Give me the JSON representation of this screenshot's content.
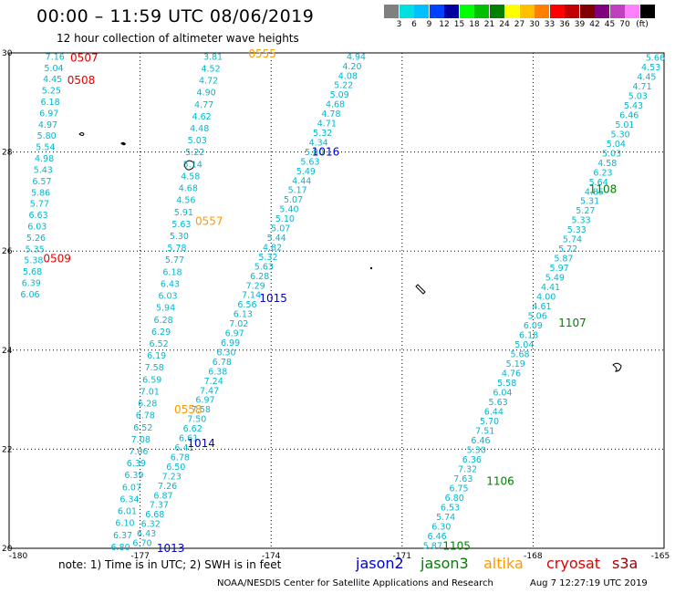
{
  "title": "00:00 – 11:59 UTC 08/06/2019",
  "subtitle": "12 hour collection of altimeter wave heights",
  "scale": {
    "unit": "(ft)",
    "colors": [
      "#808080",
      "#00e0e0",
      "#00c0ff",
      "#0040ff",
      "#0000a0",
      "#00ff00",
      "#00c000",
      "#008000",
      "#ffff00",
      "#ffc000",
      "#ff8000",
      "#ff0000",
      "#c00000",
      "#800000",
      "#800080",
      "#c040c0",
      "#ff80ff",
      "#000000"
    ],
    "labels": [
      "3",
      "6",
      "9",
      "12",
      "15",
      "18",
      "21",
      "24",
      "27",
      "30",
      "33",
      "36",
      "39",
      "42",
      "45",
      "70"
    ]
  },
  "axes": {
    "x_ticks": [
      "-180",
      "-177",
      "-174",
      "-171",
      "-168",
      "-165"
    ],
    "y_ticks": [
      "30",
      "28",
      "26",
      "24",
      "22",
      "20"
    ],
    "lon_range": [
      -180,
      -165
    ],
    "lat_range": [
      20,
      30
    ]
  },
  "satellite_colors": {
    "jason2": "#0000c8",
    "jason3": "#008000",
    "altika": "#ff9900",
    "cryosat": "#e00000",
    "s3a": "#a00000",
    "swh": "#00b8d0"
  },
  "passes": [
    {
      "time": "0507",
      "sat": "cryosat",
      "lon": -178.28,
      "lat": 29.9
    },
    {
      "time": "0508",
      "sat": "cryosat",
      "lon": -178.35,
      "lat": 29.45
    },
    {
      "time": "0509",
      "sat": "cryosat",
      "lon": -178.9,
      "lat": 25.85
    },
    {
      "time": "0555",
      "sat": "altika",
      "lon": -174.2,
      "lat": 29.98
    },
    {
      "time": "0557",
      "sat": "altika",
      "lon": -175.42,
      "lat": 26.6
    },
    {
      "time": "0558",
      "sat": "altika",
      "lon": -175.9,
      "lat": 22.8
    },
    {
      "time": "1016",
      "sat": "jason2",
      "lon": -172.75,
      "lat": 28.0
    },
    {
      "time": "1015",
      "sat": "jason2",
      "lon": -173.95,
      "lat": 25.05
    },
    {
      "time": "1014",
      "sat": "jason2",
      "lon": -175.6,
      "lat": 22.12
    },
    {
      "time": "1013",
      "sat": "jason2",
      "lon": -176.3,
      "lat": 20.0
    },
    {
      "time": "1108",
      "sat": "jason3",
      "lon": -166.4,
      "lat": 27.25
    },
    {
      "time": "1107",
      "sat": "jason3",
      "lon": -167.1,
      "lat": 24.55
    },
    {
      "time": "1106",
      "sat": "jason3",
      "lon": -168.75,
      "lat": 21.35
    },
    {
      "time": "1105",
      "sat": "jason3",
      "lon": -169.75,
      "lat": 20.05
    }
  ],
  "tracks": [
    {
      "name": "track-a",
      "start": [
        -178.95,
        29.92
      ],
      "end": [
        -179.52,
        25.12
      ],
      "values": [
        "7.16",
        "5.04",
        "4.45",
        "5.25",
        "6.18",
        "6.97",
        "4.97",
        "5.80",
        "5.54",
        "4.98",
        "5.43",
        "6.57",
        "5.86",
        "5.77",
        "6.63",
        "6.03",
        "5.26",
        "5.35",
        "5.38",
        "5.68",
        "6.39",
        "6.06"
      ]
    },
    {
      "name": "track-b",
      "start": [
        -175.33,
        29.92
      ],
      "end": [
        -177.45,
        20.02
      ],
      "values": [
        "3.81",
        "4.52",
        "4.72",
        "4.90",
        "4.77",
        "4.62",
        "4.48",
        "5.03",
        "5.22",
        "5.14",
        "4.58",
        "4.68",
        "4.56",
        "5.91",
        "5.63",
        "5.30",
        "5.78",
        "5.77",
        "6.18",
        "6.43",
        "6.03",
        "5.94",
        "6.28",
        "6.29",
        "6.52",
        "6.19",
        "7.58",
        "6.59",
        "7.01",
        "6.28",
        "6.78",
        "6.52",
        "7.08",
        "7.06",
        "6.39",
        "6.39",
        "6.07",
        "6.34",
        "6.01",
        "6.10",
        "6.37",
        "6.80"
      ]
    },
    {
      "name": "track-c",
      "start": [
        -172.05,
        29.92
      ],
      "end": [
        -176.95,
        20.1
      ],
      "values": [
        "4.94",
        "4.20",
        "4.08",
        "5.22",
        "5.09",
        "4.68",
        "4.78",
        "4.71",
        "5.32",
        "4.34",
        "5.00",
        "5.63",
        "5.49",
        "4.44",
        "5.17",
        "5.07",
        "5.40",
        "5.10",
        "5.07",
        "5.44",
        "4.82",
        "5.32",
        "5.63",
        "6.28",
        "7.29",
        "7.14",
        "6.56",
        "6.13",
        "7.02",
        "6.97",
        "6.99",
        "6.30",
        "6.78",
        "6.38",
        "7.24",
        "7.47",
        "6.97",
        "7.58",
        "7.50",
        "6.62",
        "6.61",
        "6.41",
        "6.78",
        "6.50",
        "7.23",
        "7.26",
        "6.87",
        "7.37",
        "6.68",
        "6.32",
        "6.43",
        "6.70"
      ]
    },
    {
      "name": "track-d",
      "start": [
        -165.2,
        29.9
      ],
      "end": [
        -170.3,
        20.05
      ],
      "values": [
        "5.66",
        "4.53",
        "4.45",
        "4.71",
        "5.03",
        "5.43",
        "6.46",
        "5.01",
        "5.30",
        "5.04",
        "5.03",
        "4.58",
        "6.23",
        "5.64",
        "4.85",
        "5.31",
        "5.27",
        "5.33",
        "5.33",
        "5.74",
        "5.72",
        "5.87",
        "5.97",
        "5.49",
        "4.41",
        "4.00",
        "4.61",
        "5.06",
        "6.09",
        "6.18",
        "5.04",
        "5.68",
        "5.19",
        "4.76",
        "5.58",
        "6.04",
        "5.63",
        "6.44",
        "5.70",
        "7.51",
        "6.46",
        "5.30",
        "6.36",
        "7.32",
        "7.63",
        "6.75",
        "6.80",
        "6.53",
        "5.74",
        "6.30",
        "6.46",
        "5.87"
      ]
    }
  ],
  "note": "note:  1) Time is in UTC;  2) SWH is in feet",
  "legend": [
    {
      "label": "jason2",
      "color": "#0000c8"
    },
    {
      "label": "jason3",
      "color": "#008000"
    },
    {
      "label": "altika",
      "color": "#ff9900"
    },
    {
      "label": "cryosat",
      "color": "#e00000"
    },
    {
      "label": "s3a",
      "color": "#a00000"
    }
  ],
  "footer": "NOAA/NESDIS Center for Satellite Applications and Research",
  "footer_time": "Aug  7 12:27:19 UTC 2019"
}
